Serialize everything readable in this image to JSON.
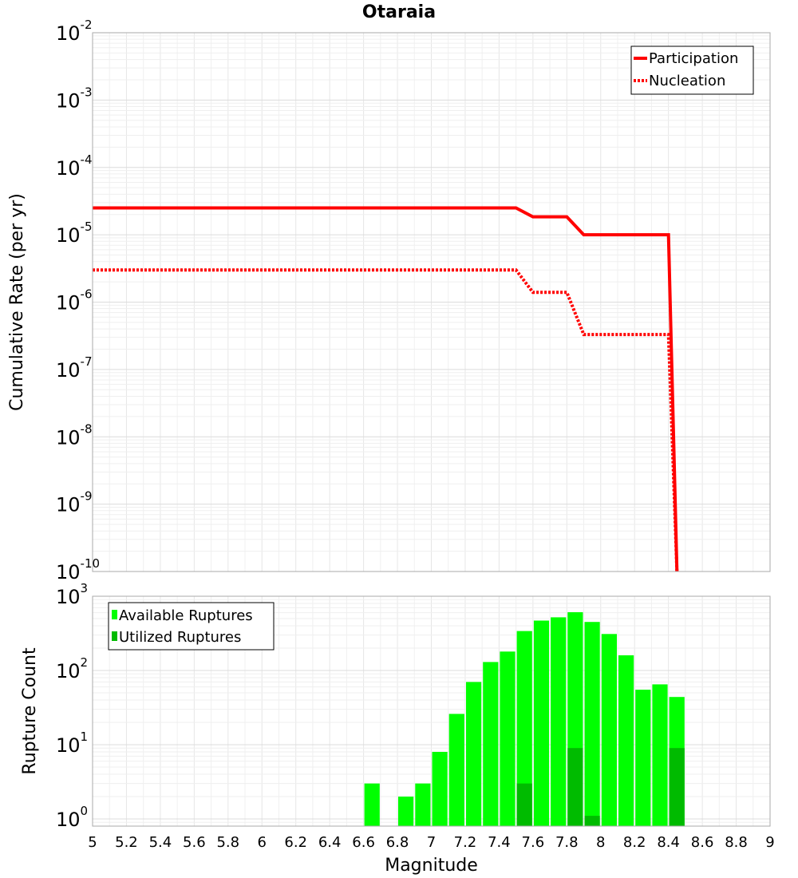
{
  "chart_data": [
    {
      "type": "line",
      "title": "Otaraia",
      "xlabel": "",
      "ylabel": "Cumulative Rate (per yr)",
      "xlim": [
        5,
        9
      ],
      "ylim": [
        1e-10,
        0.01
      ],
      "yscale": "log",
      "y_tick_exponents": [
        "-2",
        "-3",
        "-4",
        "-5",
        "-6",
        "-7",
        "-8",
        "-9",
        "-10"
      ],
      "y_tick_base": "10",
      "grid": true,
      "legend_position": "top-right",
      "series": [
        {
          "name": "Participation",
          "style": "solid",
          "color": "#ff0000",
          "x": [
            5.0,
            7.5,
            7.6,
            7.8,
            7.9,
            8.4,
            8.45
          ],
          "y": [
            2.5e-05,
            2.5e-05,
            1.85e-05,
            1.85e-05,
            1e-05,
            1e-05,
            1e-10
          ]
        },
        {
          "name": "Nucleation",
          "style": "dotted",
          "color": "#ff0000",
          "x": [
            5.0,
            7.5,
            7.6,
            7.8,
            7.9,
            8.4,
            8.45
          ],
          "y": [
            3e-06,
            3e-06,
            1.4e-06,
            1.4e-06,
            3.3e-07,
            3.3e-07,
            1e-10
          ]
        }
      ]
    },
    {
      "type": "bar",
      "title": "",
      "xlabel": "Magnitude",
      "ylabel": "Rupture Count",
      "xlim": [
        5,
        9
      ],
      "ylim": [
        0.8,
        1000
      ],
      "yscale": "log",
      "y_tick_exponents": [
        "3",
        "2",
        "1",
        "0"
      ],
      "y_tick_base": "10",
      "x_ticks": [
        "5",
        "5.2",
        "5.4",
        "5.6",
        "5.8",
        "6",
        "6.2",
        "6.4",
        "6.6",
        "6.8",
        "7",
        "7.2",
        "7.4",
        "7.6",
        "7.8",
        "8",
        "8.2",
        "8.4",
        "8.6",
        "8.8",
        "9"
      ],
      "grid": true,
      "legend_position": "top-left",
      "bin_width": 0.1,
      "series": [
        {
          "name": "Available Ruptures",
          "color": "#00ff00",
          "x": [
            6.65,
            6.85,
            6.95,
            7.05,
            7.15,
            7.25,
            7.35,
            7.45,
            7.55,
            7.65,
            7.75,
            7.85,
            7.95,
            8.05,
            8.15,
            8.25,
            8.35,
            8.45
          ],
          "values": [
            3,
            2,
            3,
            8,
            26,
            70,
            130,
            180,
            340,
            470,
            520,
            610,
            450,
            310,
            160,
            55,
            65,
            44
          ]
        },
        {
          "name": "Utilized Ruptures",
          "color": "#00bb00",
          "x": [
            7.55,
            7.85,
            7.95,
            8.45
          ],
          "values": [
            3,
            9,
            1.1,
            9
          ]
        }
      ]
    }
  ]
}
